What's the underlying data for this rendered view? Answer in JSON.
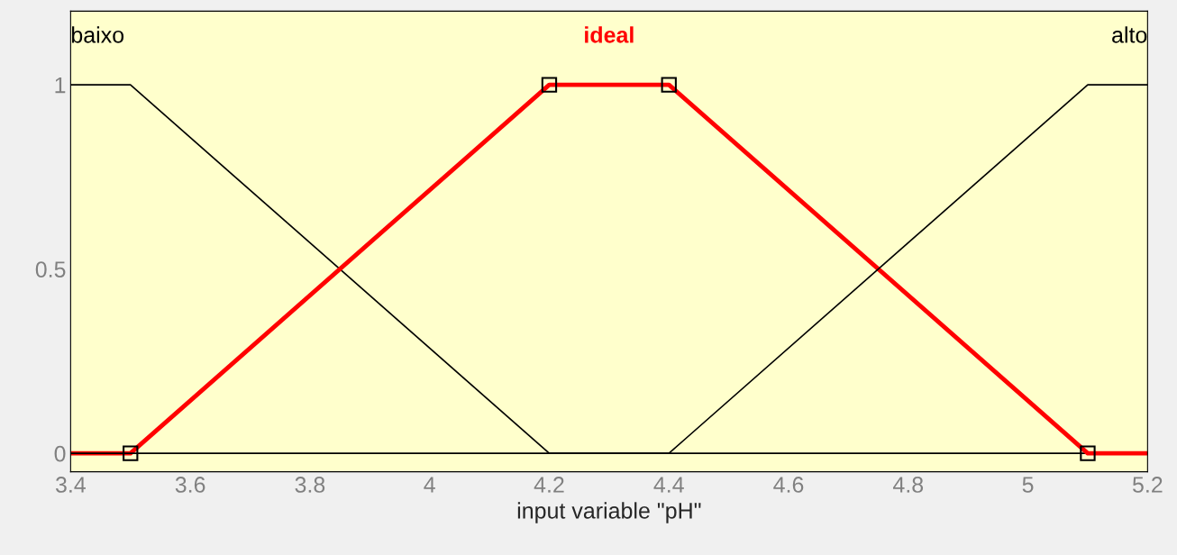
{
  "chart_data": {
    "type": "line",
    "xlabel": "input variable \"pH\"",
    "series": [
      {
        "name": "baixo",
        "color": "#000000",
        "x": [
          3.4,
          3.5,
          4.2,
          5.2
        ],
        "values": [
          1,
          1,
          0,
          0
        ],
        "marker": "none"
      },
      {
        "name": "ideal",
        "color": "#ff0000",
        "x": [
          3.4,
          3.5,
          4.2,
          4.4,
          5.1,
          5.2
        ],
        "values": [
          0,
          0,
          1,
          1,
          0,
          0
        ],
        "marker": "square"
      },
      {
        "name": "alto",
        "color": "#000000",
        "x": [
          3.4,
          4.4,
          5.1,
          5.2
        ],
        "values": [
          0,
          0,
          1,
          1
        ],
        "marker": "none"
      }
    ],
    "xlim": [
      3.4,
      5.2
    ],
    "xticks": [
      3.4,
      3.6,
      3.8,
      4,
      4.2,
      4.4,
      4.6,
      4.8,
      5,
      5.2
    ],
    "ylim": [
      -0.05,
      1.2
    ],
    "yticks": [
      0,
      0.5,
      1
    ],
    "grid": false,
    "legend": false,
    "line_style": "solid"
  }
}
